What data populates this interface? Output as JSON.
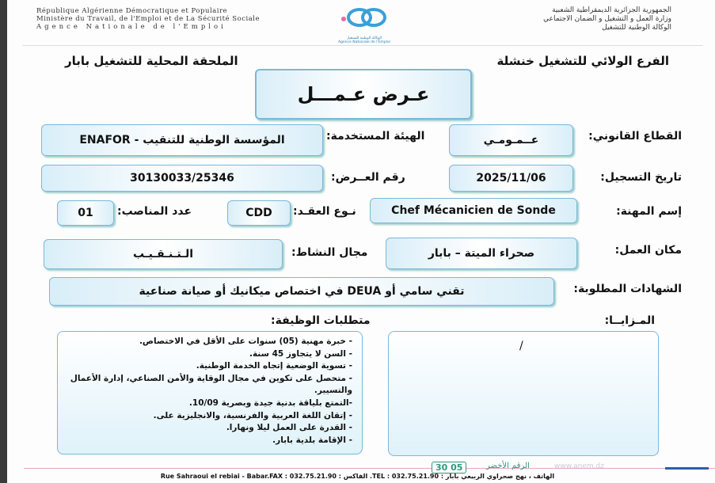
{
  "header": {
    "fr": [
      "République Algérienne Démocratique et Populaire",
      "Ministère du Travail, de l'Emploi et de La Sécurité Sociale",
      "Agence Nationale de l'Emploi"
    ],
    "ar": [
      "الجمهورية الجزائرية الديمقراطية الشعبية",
      "وزارة العمل و التشغيل و الضمان الاجتماعي",
      "الوكالة الوطنية للتشغيل"
    ],
    "logo_ar": "الوكالة الوطنية للتشغيل",
    "logo_fr": "Agence Nationale de l'Emploi"
  },
  "branch_right": "الفرع الولائي للتشغيل خنشلة",
  "branch_left": "الملحقة المحلية للتشغيل بابار",
  "title": "عـرض عـمـــل",
  "fields": {
    "sector_label": "القطاع القانوني:",
    "sector": "عــمـومـي",
    "employer_label": "الهيئة المستخدمة:",
    "employer": "المؤسسة الوطنية للتنقيب - ENAFOR",
    "reg_date_label": "تاريخ التسجيل:",
    "reg_date": "2025/11/06",
    "offer_no_label": "رقم العــرض:",
    "offer_no": "30130033/25346",
    "job_label": "إسم المهنة:",
    "job": "Chef Mécanicien de Sonde",
    "contract_label": "نـوع العقـد:",
    "contract": "CDD",
    "positions_label": "عدد المناصب:",
    "positions": "01",
    "location_label": "مكان العمل:",
    "location": "صحراء الميتة – بابار",
    "activity_label": "مجال النشاط:",
    "activity": "الـتـنـقـيـب",
    "diplomas_label": "الشهادات المطلوبة:",
    "diplomas": "تقني سامي أو DEUA في اختصاص ميكانيك أو صيانة صناعية",
    "advantages_label": "المـزايــا:",
    "advantages": "/",
    "requirements_label": "متطلبات الوظيفة:"
  },
  "requirements": [
    "- خبرة مهنية (05) سنوات على الأقل في الاختصاص.",
    "- السن لا يتجاوز 45 سنة.",
    "- تسوية الوضعية إتجاه الخدمة الوطنية.",
    "- متحصل على تكوين في مجال الوقاية والأمن الصناعي، إدارة الأعمال والتسيير.",
    "-التمتع بلياقة بدنية جيدة وبصرية 10/09.",
    "- إتقان اللغة العربية والفرنسية، والانجليزية على.",
    "- القدرة على العمل ليلا ونهارا.",
    "- الإقامة بلدية بابار."
  ],
  "footer": {
    "green_label": "الرقم الأخضر",
    "green_number": "30 05",
    "website": "www.anem.dz",
    "address": "Rue Sahraoui el rebiai - Babar.FAX : 032.75.21.90 : الفاكس .TEL : 032.75.21.90 : الهاتف ، نهج صحراوي الربيعي بابار"
  },
  "colors": {
    "box_border": "#7ab9d9",
    "box_fill": "#d9eef8",
    "green": "#2a9a7a"
  }
}
